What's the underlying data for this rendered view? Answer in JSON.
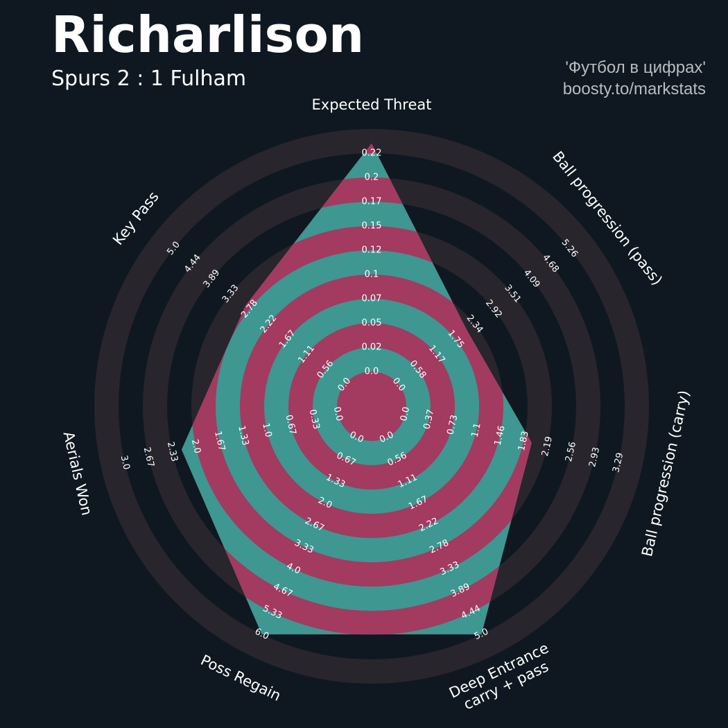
{
  "header": {
    "title": "Richarlison",
    "subtitle": "Spurs 2 : 1 Fulham",
    "credit_line1": "'Футбол в цифрах'",
    "credit_line2": "boosty.to/markstats"
  },
  "colors": {
    "background": "#0f1820",
    "outer_ring": "#28252d",
    "inner_ring_a": "#a33a60",
    "inner_ring_b": "#3e9791",
    "text": "#ffffff",
    "credit": "#b8bcc0"
  },
  "chart_data": {
    "type": "radar",
    "player": "Richarlison",
    "axes": [
      {
        "label": "Expected Threat",
        "value": 0.23,
        "ticks": [
          "0.0",
          "0.02",
          "0.05",
          "0.07",
          "0.1",
          "0.12",
          "0.15",
          "0.17",
          "0.2",
          "0.22"
        ]
      },
      {
        "label": "Ball progression (pass)",
        "value": 2.1,
        "ticks": [
          "0.0",
          "0.58",
          "1.17",
          "1.75",
          "2.34",
          "2.92",
          "3.51",
          "4.09",
          "4.68",
          "5.26"
        ]
      },
      {
        "label": "Ball progression (carry)",
        "value": 1.95,
        "ticks": [
          "0.0",
          "0.37",
          "0.73",
          "1.1",
          "1.46",
          "1.83",
          "2.19",
          "2.56",
          "2.93",
          "3.29"
        ]
      },
      {
        "label": "Deep Entrance\ncarry + pass",
        "value": 5.0,
        "ticks": [
          "0.0",
          "0.56",
          "1.11",
          "1.67",
          "2.22",
          "2.78",
          "3.33",
          "3.89",
          "4.44",
          "5.0"
        ]
      },
      {
        "label": "Poss Regain",
        "value": 6.0,
        "ticks": [
          "0.0",
          "0.67",
          "1.33",
          "2.0",
          "2.67",
          "3.33",
          "4.0",
          "4.67",
          "5.33",
          "6.0"
        ]
      },
      {
        "label": "Aerials Won",
        "value": 2.2,
        "ticks": [
          "0.0",
          "0.33",
          "0.67",
          "1.0",
          "1.33",
          "1.67",
          "2.0",
          "2.33",
          "2.67",
          "3.0"
        ]
      },
      {
        "label": "Key Pass",
        "value": 2.9,
        "ticks": [
          "0.0",
          "0.56",
          "1.11",
          "1.67",
          "2.22",
          "2.78",
          "3.33",
          "3.89",
          "4.44",
          "5.0"
        ]
      }
    ]
  }
}
